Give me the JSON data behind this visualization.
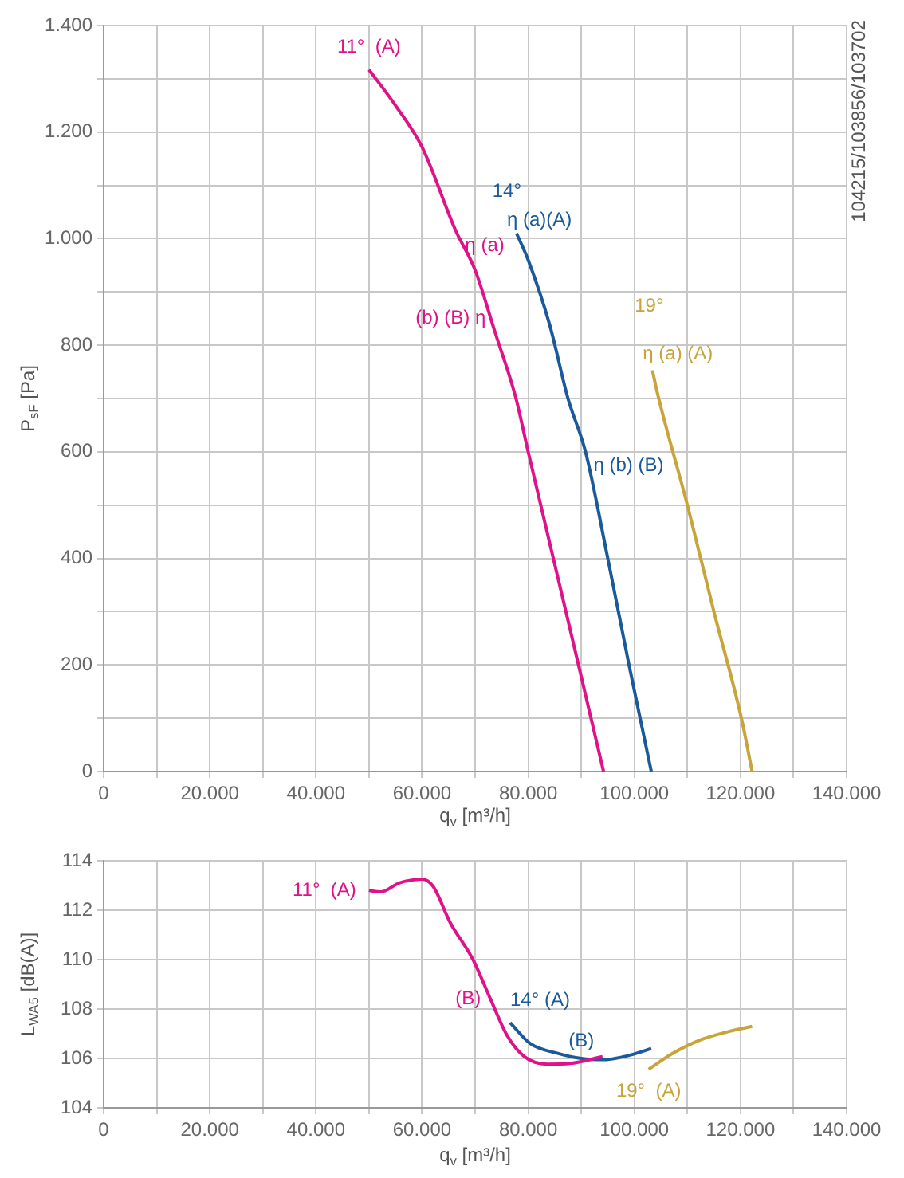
{
  "chart_data": [
    {
      "type": "line",
      "xlabel": "q$_{v}$ [m³/h]",
      "ylabel": "P$_{sF}$ [Pa]",
      "xlim": [
        0,
        140000
      ],
      "ylim": [
        0,
        1400
      ],
      "xticks": [
        {
          "value": 0,
          "label": "0"
        },
        {
          "value": 10000,
          "label": null
        },
        {
          "value": 20000,
          "label": "20.000"
        },
        {
          "value": 30000,
          "label": null
        },
        {
          "value": 40000,
          "label": "40.000"
        },
        {
          "value": 50000,
          "label": null
        },
        {
          "value": 60000,
          "label": "60.000"
        },
        {
          "value": 70000,
          "label": null
        },
        {
          "value": 80000,
          "label": "80.000"
        },
        {
          "value": 90000,
          "label": null
        },
        {
          "value": 100000,
          "label": "100.000"
        },
        {
          "value": 110000,
          "label": null
        },
        {
          "value": 120000,
          "label": "120.000"
        },
        {
          "value": 130000,
          "label": null
        },
        {
          "value": 140000,
          "label": "140.000"
        }
      ],
      "yticks": [
        0,
        {
          "value": 100,
          "label": null
        },
        200,
        {
          "value": 300,
          "label": null
        },
        400,
        {
          "value": 500,
          "label": null
        },
        600,
        {
          "value": 700,
          "label": null
        },
        800,
        {
          "value": 900,
          "label": null
        },
        {
          "value": 1000,
          "label": "1.000"
        },
        {
          "value": 1100,
          "label": null
        },
        {
          "value": 1200,
          "label": "1.200"
        },
        {
          "value": 1300,
          "label": null
        },
        {
          "value": 1400,
          "label": "1.400"
        }
      ],
      "grid": true,
      "marker": "none",
      "line_style": "solid",
      "series": [
        {
          "color": "#e0128a",
          "x": [
            50000,
            55000,
            60000,
            66300,
            70000,
            73800,
            77600,
            80000,
            85000,
            90000,
            94200
          ],
          "values": [
            1317,
            1250,
            1172,
            1016,
            941,
            823,
            704,
            600,
            389,
            178,
            0
          ]
        },
        {
          "color": "#1a5a9a",
          "x": [
            77800,
            80000,
            84000,
            87500,
            90800,
            95000,
            99000,
            103200
          ],
          "values": [
            1010,
            960,
            840,
            700,
            600,
            400,
            200,
            0
          ]
        },
        {
          "color": "#c9a43a",
          "x": [
            103400,
            104500,
            110000,
            115000,
            120200,
            122200
          ],
          "values": [
            753,
            704,
            500,
            300,
            99,
            0
          ]
        }
      ],
      "annotations": [
        {
          "text": "11°  (A)",
          "x": 50000,
          "y": 1317
        },
        {
          "text": "14°",
          "x": 77800,
          "y": 1010
        },
        {
          "text": "η (a)(A)",
          "x": 77800,
          "y": 1010
        },
        {
          "text": "η (a)",
          "x": 66300,
          "y": 1016
        },
        {
          "text": "(b) (B) η",
          "x": 73800,
          "y": 823
        },
        {
          "text": "19°",
          "x": 103400,
          "y": 753
        },
        {
          "text": "η (a) (A)",
          "x": 103400,
          "y": 753
        },
        {
          "text": "η (b) (B)",
          "x": 90800,
          "y": 600
        },
        "104215/103856/103702"
      ]
    },
    {
      "type": "line",
      "xlabel": "q$_{v}$ [m³/h]",
      "ylabel": "L$_{WA5}$ [dB(A)]",
      "xlim": [
        0,
        140000
      ],
      "ylim": [
        104,
        114
      ],
      "xticks": [
        {
          "value": 0,
          "label": "0"
        },
        {
          "value": 10000,
          "label": null
        },
        {
          "value": 20000,
          "label": "20.000"
        },
        {
          "value": 30000,
          "label": null
        },
        {
          "value": 40000,
          "label": "40.000"
        },
        {
          "value": 50000,
          "label": null
        },
        {
          "value": 60000,
          "label": "60.000"
        },
        {
          "value": 70000,
          "label": null
        },
        {
          "value": 80000,
          "label": "80.000"
        },
        {
          "value": 90000,
          "label": null
        },
        {
          "value": 100000,
          "label": "100.000"
        },
        {
          "value": 110000,
          "label": null
        },
        {
          "value": 120000,
          "label": "120.000"
        },
        {
          "value": 130000,
          "label": null
        },
        {
          "value": 140000,
          "label": "140.000"
        }
      ],
      "yticks": [
        104,
        106,
        108,
        110,
        112,
        114
      ],
      "grid": true,
      "marker": "none",
      "line_style": "solid",
      "series": [
        {
          "color": "#e0128a",
          "x": [
            50000,
            52200,
            55700,
            60000,
            62100,
            65300,
            69600,
            72900,
            76100,
            79300,
            83600,
            87900,
            94000
          ],
          "values": [
            112.8,
            112.74,
            113.1,
            113.26,
            112.96,
            111.5,
            110.0,
            108.4,
            106.9,
            106.07,
            105.77,
            105.8,
            106.07
          ]
        },
        {
          "color": "#1a5a9a",
          "x": [
            76600,
            80400,
            85700,
            90000,
            94300,
            98600,
            103200
          ],
          "values": [
            107.45,
            106.6,
            106.2,
            106.0,
            105.95,
            106.1,
            106.4
          ]
        },
        {
          "color": "#c9a43a",
          "x": [
            102700,
            107200,
            112600,
            118000,
            122200
          ],
          "values": [
            105.56,
            106.2,
            106.76,
            107.1,
            107.3
          ]
        }
      ],
      "annotations": [
        {
          "text": "11°  (A)",
          "x": 50000,
          "y": 112.8
        },
        {
          "text": "(B)",
          "x": 72900,
          "y": 108.4
        },
        {
          "text": "14° (A)",
          "x": 76600,
          "y": 107.45
        },
        {
          "text": "(B)",
          "x": 90000,
          "y": 106.0
        },
        {
          "text": "19°  (A)",
          "x": 102700,
          "y": 105.56
        }
      ]
    }
  ]
}
